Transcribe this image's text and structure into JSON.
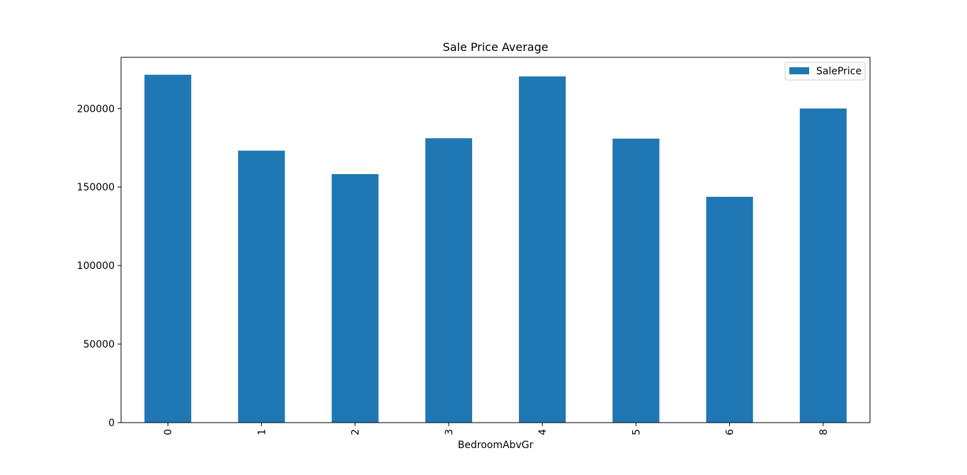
{
  "chart_data": {
    "type": "bar",
    "title": "Sale Price Average",
    "xlabel": "BedroomAbvGr",
    "ylabel": "",
    "categories": [
      "0",
      "1",
      "2",
      "3",
      "4",
      "5",
      "6",
      "8"
    ],
    "series": [
      {
        "name": "SalePrice",
        "color": "#1f77b4",
        "values": [
          221493,
          173163,
          158198,
          181056,
          220422,
          180820,
          143779,
          200000
        ]
      }
    ],
    "ylim": [
      0,
      232568
    ],
    "yticks": [
      0,
      50000,
      100000,
      150000,
      200000
    ],
    "xtick_rotation": "vertical",
    "grid": false,
    "legend_position": "top-right"
  }
}
